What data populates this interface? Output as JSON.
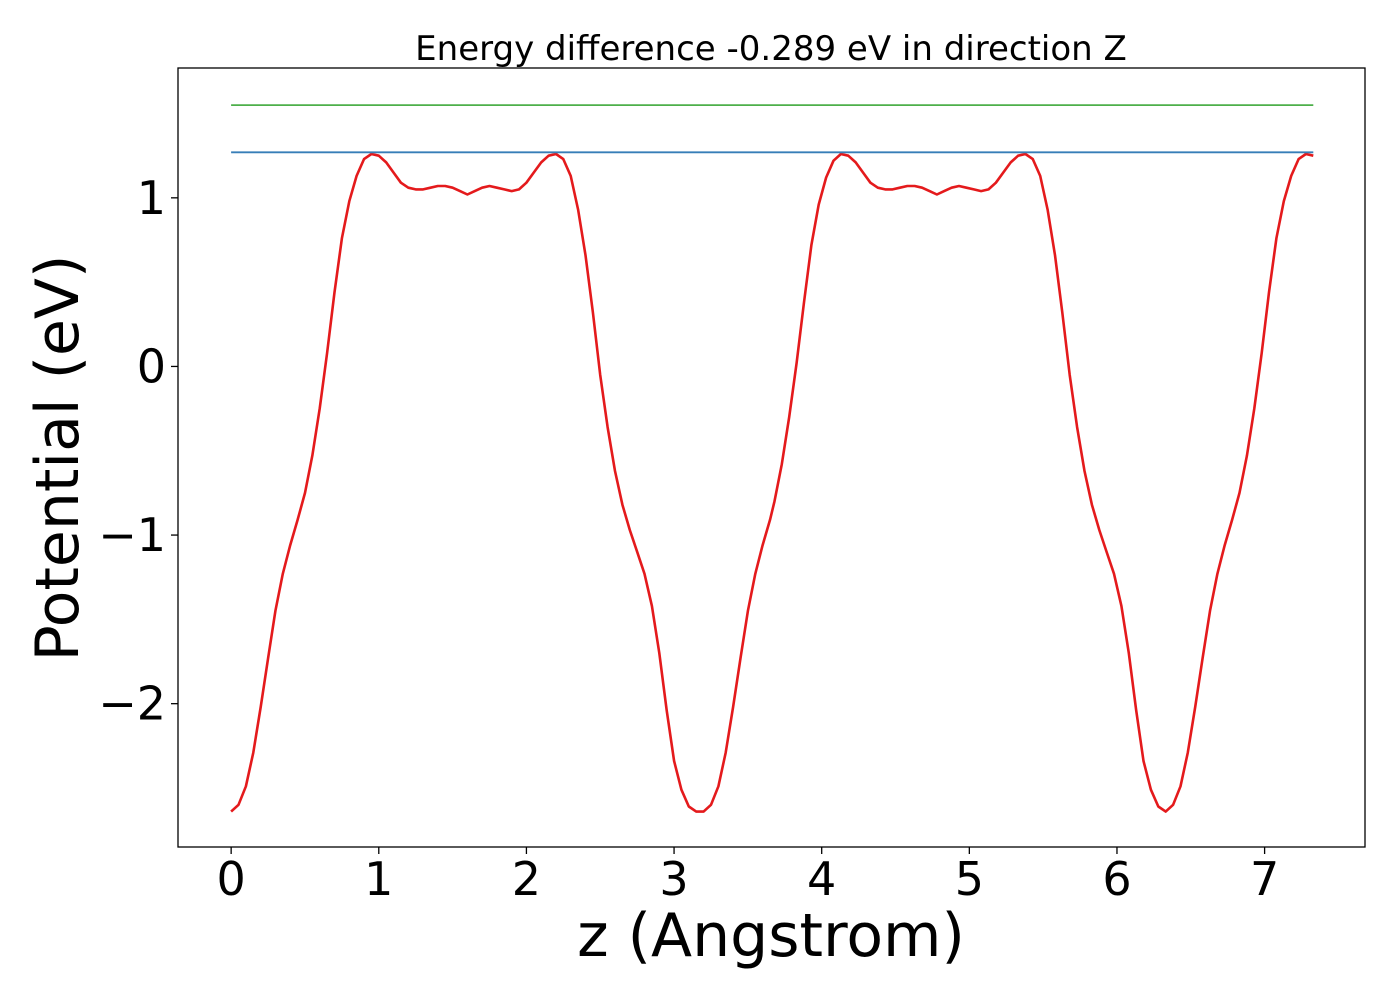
{
  "chart_data": {
    "type": "line",
    "title": "Energy difference -0.289 eV in direction Z",
    "xlabel": "z (Angstrom)",
    "ylabel": "Potential (eV)",
    "xlim": [
      -0.36,
      7.68
    ],
    "ylim": [
      -2.85,
      1.77
    ],
    "x_ticks": [
      0,
      1,
      2,
      3,
      4,
      5,
      6,
      7
    ],
    "x_tick_labels": [
      "0",
      "1",
      "2",
      "3",
      "4",
      "5",
      "6",
      "7"
    ],
    "y_ticks": [
      1,
      0,
      -1,
      -2
    ],
    "y_tick_labels": [
      "1",
      "0",
      "−1",
      "−2"
    ],
    "grid": false,
    "legend": "none",
    "series": [
      {
        "color": "#e41a1c",
        "x": [
          0,
          0.05,
          0.1,
          0.15,
          0.2,
          0.25,
          0.3,
          0.35,
          0.4,
          0.45,
          0.5,
          0.55,
          0.6,
          0.65,
          0.7,
          0.75,
          0.8,
          0.85,
          0.9,
          0.95,
          1.0,
          1.05,
          1.1,
          1.15,
          1.2,
          1.25,
          1.3,
          1.35,
          1.4,
          1.45,
          1.5,
          1.55,
          1.6,
          1.65,
          1.7,
          1.75,
          1.8,
          1.85,
          1.9,
          1.95,
          2.0,
          2.05,
          2.1,
          2.15,
          2.2,
          2.25,
          2.3,
          2.35,
          2.4,
          2.45,
          2.5,
          2.55,
          2.6,
          2.65,
          2.7,
          2.75,
          2.8,
          2.85,
          2.9,
          2.95,
          3.0,
          3.05,
          3.1,
          3.15,
          3.2,
          3.25,
          3.3,
          3.35,
          3.4,
          3.45,
          3.5,
          3.55,
          3.6,
          3.65,
          3.68,
          3.73,
          3.78,
          3.83,
          3.88,
          3.93,
          3.98,
          4.03,
          4.08,
          4.13,
          4.18,
          4.23,
          4.28,
          4.33,
          4.38,
          4.43,
          4.48,
          4.53,
          4.58,
          4.63,
          4.68,
          4.73,
          4.78,
          4.83,
          4.88,
          4.93,
          4.98,
          5.03,
          5.08,
          5.13,
          5.18,
          5.23,
          5.28,
          5.33,
          5.38,
          5.43,
          5.48,
          5.53,
          5.58,
          5.63,
          5.68,
          5.73,
          5.78,
          5.83,
          5.88,
          5.93,
          5.98,
          6.03,
          6.08,
          6.13,
          6.18,
          6.23,
          6.28,
          6.33,
          6.38,
          6.43,
          6.48,
          6.53,
          6.58,
          6.63,
          6.68,
          6.73,
          6.78,
          6.83,
          6.88,
          6.93,
          6.98,
          7.03,
          7.08,
          7.13,
          7.18,
          7.23,
          7.28,
          7.33
        ],
        "y": [
          -2.64,
          -2.6,
          -2.49,
          -2.29,
          -2.02,
          -1.73,
          -1.45,
          -1.23,
          -1.06,
          -0.91,
          -0.75,
          -0.53,
          -0.25,
          0.08,
          0.44,
          0.76,
          0.98,
          1.13,
          1.23,
          1.26,
          1.25,
          1.21,
          1.15,
          1.09,
          1.06,
          1.05,
          1.05,
          1.06,
          1.07,
          1.07,
          1.06,
          1.04,
          1.02,
          1.04,
          1.06,
          1.07,
          1.06,
          1.05,
          1.04,
          1.05,
          1.09,
          1.15,
          1.21,
          1.25,
          1.26,
          1.23,
          1.13,
          0.93,
          0.66,
          0.32,
          -0.05,
          -0.36,
          -0.62,
          -0.82,
          -0.97,
          -1.1,
          -1.23,
          -1.42,
          -1.7,
          -2.04,
          -2.34,
          -2.51,
          -2.61,
          -2.64,
          -2.64,
          -2.6,
          -2.49,
          -2.29,
          -2.02,
          -1.73,
          -1.45,
          -1.23,
          -1.06,
          -0.91,
          -0.8,
          -0.58,
          -0.3,
          0.02,
          0.38,
          0.72,
          0.96,
          1.12,
          1.22,
          1.26,
          1.25,
          1.21,
          1.15,
          1.09,
          1.06,
          1.05,
          1.05,
          1.06,
          1.07,
          1.07,
          1.06,
          1.04,
          1.02,
          1.04,
          1.06,
          1.07,
          1.06,
          1.05,
          1.04,
          1.05,
          1.09,
          1.15,
          1.21,
          1.25,
          1.26,
          1.23,
          1.13,
          0.93,
          0.66,
          0.32,
          -0.05,
          -0.36,
          -0.62,
          -0.82,
          -0.97,
          -1.1,
          -1.23,
          -1.42,
          -1.7,
          -2.04,
          -2.34,
          -2.51,
          -2.61,
          -2.64,
          -2.6,
          -2.49,
          -2.29,
          -2.02,
          -1.73,
          -1.45,
          -1.23,
          -1.06,
          -0.91,
          -0.75,
          -0.53,
          -0.25,
          0.08,
          0.44,
          0.76,
          0.98,
          1.13,
          1.23,
          1.26,
          1.25
        ]
      },
      {
        "color": "#377eb8",
        "x": [
          0,
          7.33
        ],
        "y": [
          1.27,
          1.27
        ]
      },
      {
        "color": "#4daf4a",
        "x": [
          0,
          7.33
        ],
        "y": [
          1.55,
          1.55
        ]
      }
    ]
  }
}
